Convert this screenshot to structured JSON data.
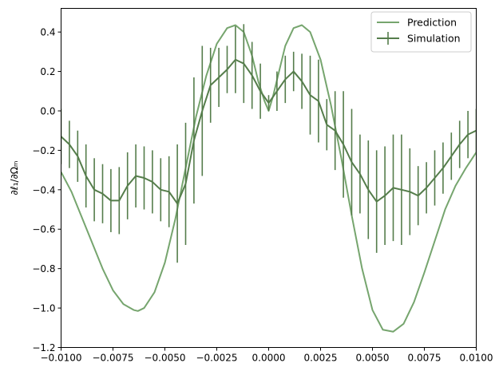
{
  "chart_data": {
    "type": "line",
    "ylabel": "∂ℓ₁/∂Ωₘ",
    "xlim": [
      -0.01,
      0.01
    ],
    "ylim": [
      -1.2,
      0.52
    ],
    "xticks": [
      -0.01,
      -0.0075,
      -0.005,
      -0.0025,
      0.0,
      0.0025,
      0.005,
      0.0075,
      0.01
    ],
    "xtick_labels": [
      "−0.0100",
      "−0.0075",
      "−0.0050",
      "−0.0025",
      "0.0000",
      "0.0025",
      "0.0050",
      "0.0075",
      "0.0100"
    ],
    "yticks": [
      -1.2,
      -1.0,
      -0.8,
      -0.6,
      -0.4,
      -0.2,
      0.0,
      0.2,
      0.4
    ],
    "ytick_labels": [
      "−1.2",
      "−1.0",
      "−0.8",
      "−0.6",
      "−0.4",
      "−0.2",
      "0.0",
      "0.2",
      "0.4"
    ],
    "grid": false,
    "legend_position": "upper-right",
    "series": [
      {
        "name": "Prediction",
        "color": "#76a56e",
        "x": [
          -0.01,
          -0.0095,
          -0.009,
          -0.0085,
          -0.008,
          -0.0075,
          -0.007,
          -0.0065,
          -0.0063,
          -0.006,
          -0.0055,
          -0.005,
          -0.0045,
          -0.004,
          -0.0035,
          -0.003,
          -0.0025,
          -0.002,
          -0.0016,
          -0.0012,
          -0.0008,
          -0.0005,
          -0.0002,
          0.0,
          0.0002,
          0.0005,
          0.0008,
          0.0012,
          0.0016,
          0.002,
          0.0025,
          0.003,
          0.0035,
          0.004,
          0.0045,
          0.005,
          0.0055,
          0.006,
          0.0065,
          0.007,
          0.0075,
          0.008,
          0.0085,
          0.009,
          0.0095,
          0.01
        ],
        "y": [
          -0.31,
          -0.41,
          -0.54,
          -0.67,
          -0.8,
          -0.91,
          -0.98,
          -1.01,
          -1.015,
          -1.0,
          -0.92,
          -0.77,
          -0.55,
          -0.29,
          -0.03,
          0.18,
          0.34,
          0.42,
          0.435,
          0.4,
          0.28,
          0.15,
          0.05,
          0.0,
          0.07,
          0.2,
          0.33,
          0.42,
          0.435,
          0.4,
          0.26,
          0.03,
          -0.24,
          -0.53,
          -0.8,
          -1.01,
          -1.11,
          -1.12,
          -1.08,
          -0.97,
          -0.82,
          -0.66,
          -0.5,
          -0.38,
          -0.29,
          -0.21
        ]
      },
      {
        "name": "Simulation",
        "color": "#557d4b",
        "x": [
          -0.01,
          -0.0096,
          -0.0092,
          -0.0088,
          -0.0084,
          -0.008,
          -0.0076,
          -0.0072,
          -0.0068,
          -0.0064,
          -0.006,
          -0.0056,
          -0.0052,
          -0.0048,
          -0.0044,
          -0.004,
          -0.0036,
          -0.0032,
          -0.0028,
          -0.0024,
          -0.002,
          -0.0016,
          -0.0012,
          -0.0008,
          -0.0004,
          0.0,
          0.0004,
          0.0008,
          0.0012,
          0.0016,
          0.002,
          0.0024,
          0.0028,
          0.0032,
          0.0036,
          0.004,
          0.0044,
          0.0048,
          0.0052,
          0.0056,
          0.006,
          0.0064,
          0.0068,
          0.0072,
          0.0076,
          0.008,
          0.0084,
          0.0088,
          0.0092,
          0.0096,
          0.01
        ],
        "y": [
          -0.13,
          -0.17,
          -0.23,
          -0.33,
          -0.4,
          -0.42,
          -0.455,
          -0.455,
          -0.38,
          -0.33,
          -0.34,
          -0.36,
          -0.4,
          -0.41,
          -0.47,
          -0.37,
          -0.15,
          0.0,
          0.13,
          0.17,
          0.21,
          0.26,
          0.24,
          0.18,
          0.1,
          0.04,
          0.1,
          0.16,
          0.2,
          0.15,
          0.08,
          0.05,
          -0.07,
          -0.1,
          -0.17,
          -0.26,
          -0.32,
          -0.4,
          -0.46,
          -0.43,
          -0.39,
          -0.4,
          -0.41,
          -0.43,
          -0.39,
          -0.34,
          -0.29,
          -0.23,
          -0.17,
          -0.12,
          -0.1
        ],
        "err": [
          0.14,
          0.12,
          0.13,
          0.16,
          0.16,
          0.15,
          0.16,
          0.17,
          0.17,
          0.16,
          0.16,
          0.16,
          0.16,
          0.18,
          0.3,
          0.31,
          0.32,
          0.33,
          0.19,
          0.15,
          0.12,
          0.17,
          0.2,
          0.17,
          0.14,
          0.04,
          0.1,
          0.12,
          0.1,
          0.14,
          0.2,
          0.21,
          0.13,
          0.2,
          0.27,
          0.27,
          0.2,
          0.25,
          0.26,
          0.25,
          0.27,
          0.28,
          0.22,
          0.15,
          0.13,
          0.14,
          0.13,
          0.12,
          0.12,
          0.12,
          0.11
        ]
      }
    ]
  }
}
